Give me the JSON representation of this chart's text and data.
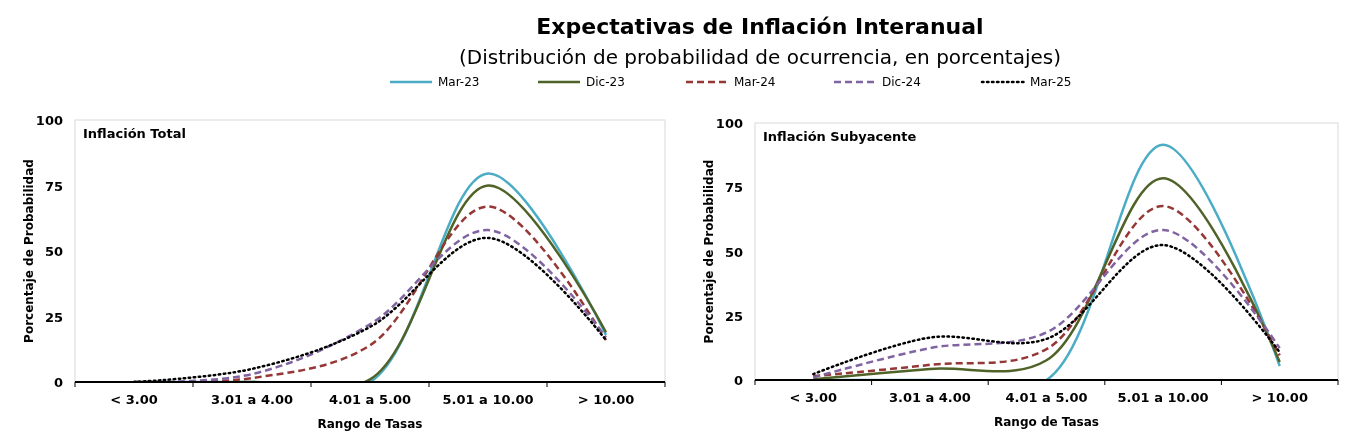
{
  "chart_data": [
    {
      "type": "line",
      "title": "Expectativas de Inflación Interanual",
      "subtitle": "(Distribución de probabilidad de ocurrencia, en porcentajes)",
      "annotations": [
        "Inflación Total"
      ],
      "xlabel": "Rango de Tasas",
      "ylabel": "Porcentaje de Probabilidad",
      "categories": [
        "< 3.00",
        "3.01 a 4.00",
        "4.01 a 5.00",
        "5.01 a 10.00",
        "> 10.00"
      ],
      "ylim": [
        0,
        100
      ],
      "yticks": [
        0,
        25,
        50,
        75,
        100
      ],
      "legend": "top",
      "grid": false,
      "series": [
        {
          "name": "Mar-23",
          "color": "#4bacc6",
          "line_style": "solid",
          "values": [
            0,
            0,
            0,
            79.6,
            18
          ]
        },
        {
          "name": "Dic-23",
          "color": "#4f6228",
          "line_style": "solid",
          "values": [
            0,
            0,
            1,
            75,
            19
          ]
        },
        {
          "name": "Mar-24",
          "color": "#953735",
          "line_style": "dashed",
          "values": [
            0,
            1.5,
            14,
            67,
            16
          ]
        },
        {
          "name": "Dic-24",
          "color": "#8064a2",
          "line_style": "dashed",
          "values": [
            0,
            3,
            22,
            58,
            17
          ]
        },
        {
          "name": "Mar-25",
          "color": "#000000",
          "line_style": "dotted",
          "values": [
            0,
            5,
            21,
            55,
            16
          ]
        }
      ]
    },
    {
      "type": "line",
      "annotations": [
        "Inflación Subyacente"
      ],
      "xlabel": "Rango de Tasas",
      "ylabel": "Porcentaje de Probabilidad",
      "categories": [
        "< 3.00",
        "3.01 a 4.00",
        "4.01 a 5.00",
        "5.01 a 10.00",
        "> 10.00"
      ],
      "ylim": [
        0,
        100
      ],
      "yticks": [
        0,
        25,
        50,
        75,
        100
      ],
      "grid": false,
      "series": [
        {
          "color": "#4bacc6",
          "line_style": "solid",
          "values": [
            0,
            0,
            0,
            91.5,
            5.4
          ]
        },
        {
          "color": "#4f6228",
          "line_style": "solid",
          "values": [
            0.3,
            4.3,
            7.7,
            78.5,
            7
          ]
        },
        {
          "color": "#953735",
          "line_style": "dashed",
          "values": [
            1.5,
            5.9,
            12,
            67.7,
            9.6
          ]
        },
        {
          "color": "#8064a2",
          "line_style": "dashed",
          "values": [
            1,
            12.4,
            18.5,
            58.4,
            12.4
          ]
        },
        {
          "color": "#000000",
          "line_style": "dotted",
          "values": [
            2.3,
            16.5,
            16,
            52.5,
            10.8
          ]
        }
      ]
    }
  ]
}
